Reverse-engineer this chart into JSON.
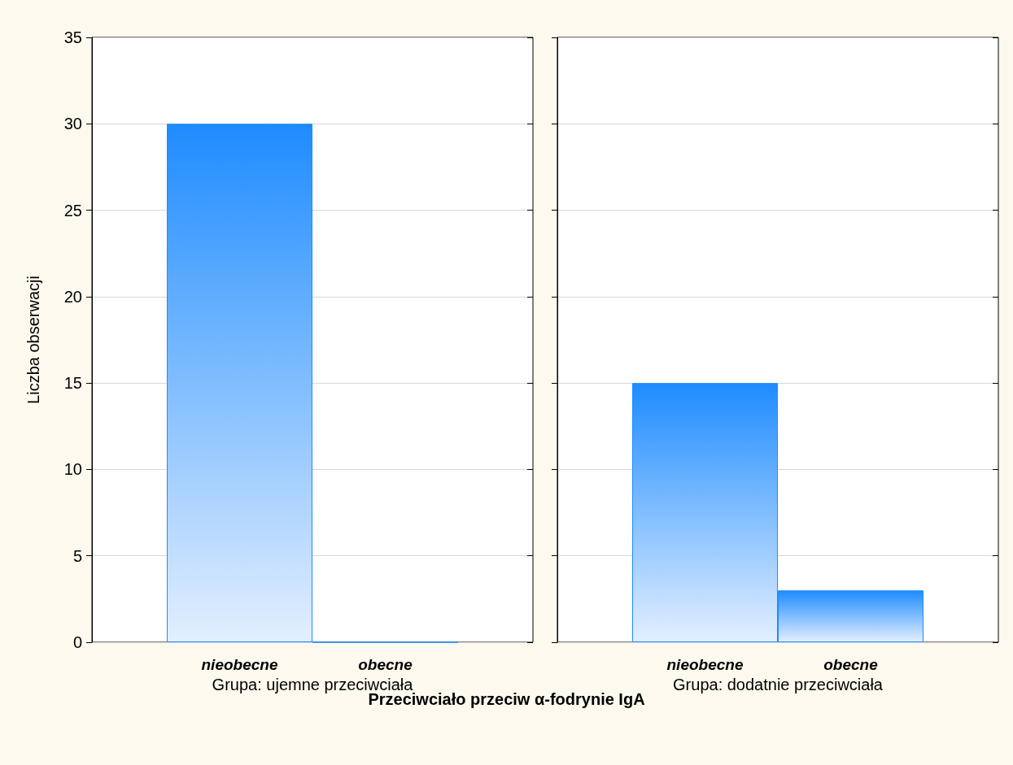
{
  "chart_data": [
    {
      "type": "bar",
      "ylabel": "Liczba obserwacji",
      "xlabel": "Grupa: ujemne przeciwciała",
      "categories": [
        "nieobecne",
        "obecne"
      ],
      "series": [
        {
          "color": "#1e8cff",
          "values": [
            30,
            0
          ]
        }
      ],
      "ylim": [
        0,
        35
      ],
      "yticks": [
        0,
        5,
        10,
        15,
        20,
        25,
        30,
        35
      ],
      "grid": "y",
      "annotations": [
        "Przeciwciało przeciw α-fodrynie IgA"
      ]
    },
    {
      "type": "bar",
      "xlabel": "Grupa: dodatnie przeciwciała",
      "categories": [
        "nieobecne",
        "obecne"
      ],
      "series": [
        {
          "color": "#1e8cff",
          "values": [
            15,
            3
          ]
        }
      ],
      "ylim": [
        0,
        35
      ],
      "yticks": [
        0,
        5,
        10,
        15,
        20,
        25,
        30,
        35
      ],
      "grid": "y",
      "tick_labels": "x"
    }
  ]
}
